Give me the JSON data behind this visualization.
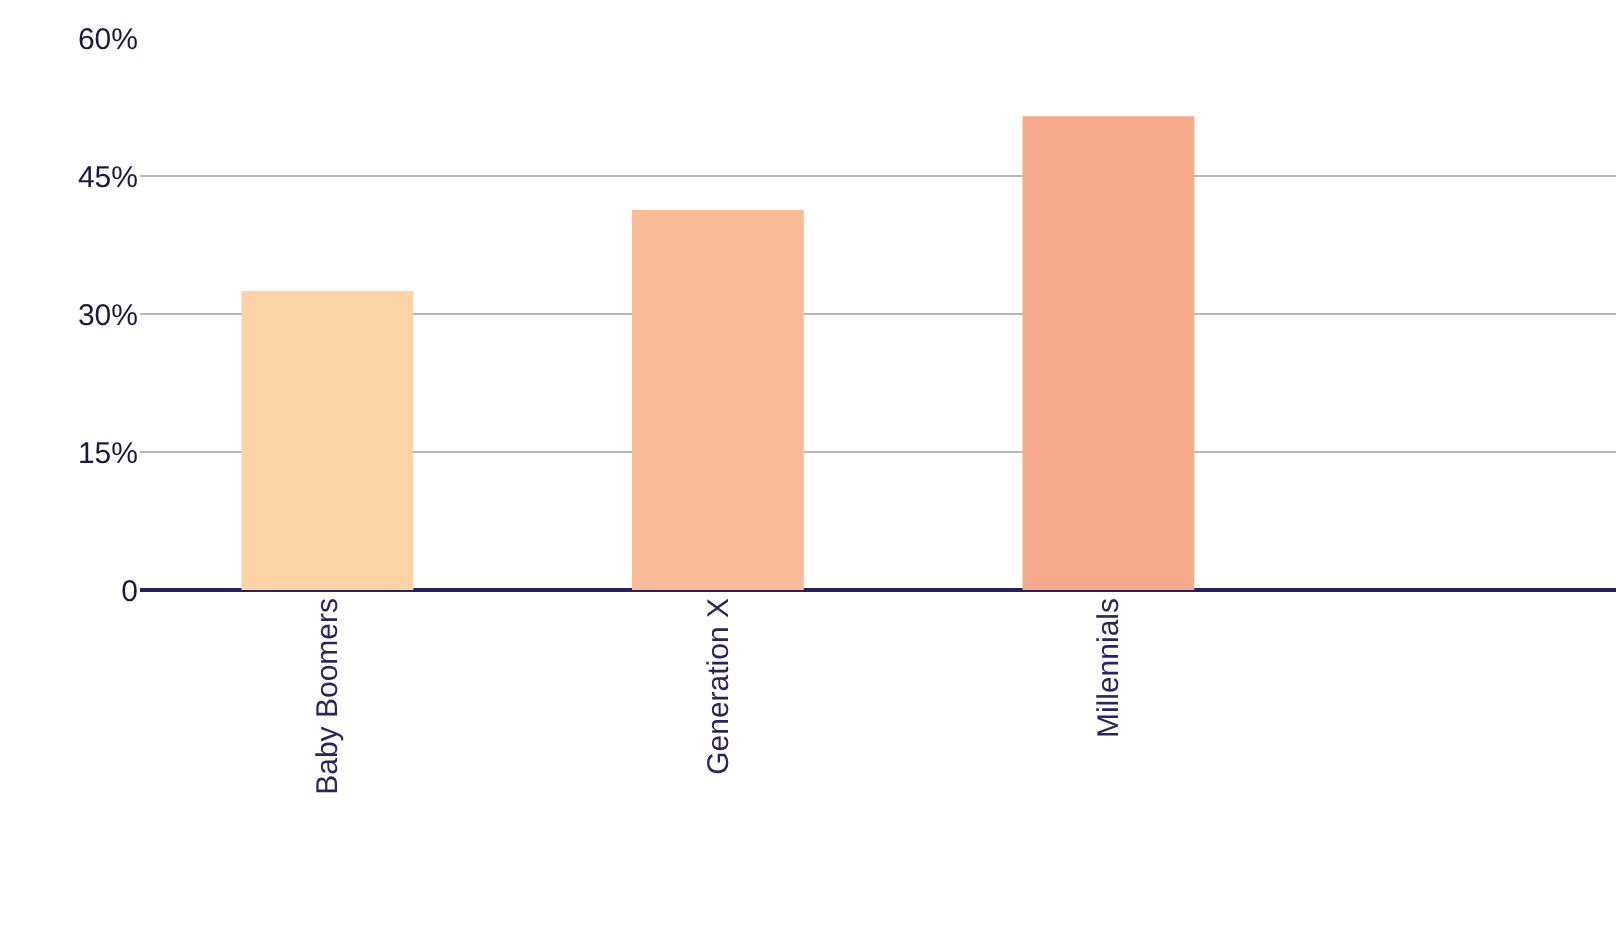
{
  "chart_data": {
    "type": "bar",
    "categories": [
      "Baby Boomers",
      "Generation X",
      "Millennials"
    ],
    "values": [
      32.5,
      41.3,
      51.5
    ],
    "colors": [
      "#fcd3a4",
      "#f9bb98",
      "#f7a98c"
    ],
    "ylim": [
      0,
      60
    ],
    "yticks": [
      {
        "value": 0,
        "label": "0"
      },
      {
        "value": 15,
        "label": "15%"
      },
      {
        "value": 30,
        "label": "30%"
      },
      {
        "value": 45,
        "label": "45%"
      },
      {
        "value": 60,
        "label": "60%"
      }
    ],
    "grid": "y"
  }
}
